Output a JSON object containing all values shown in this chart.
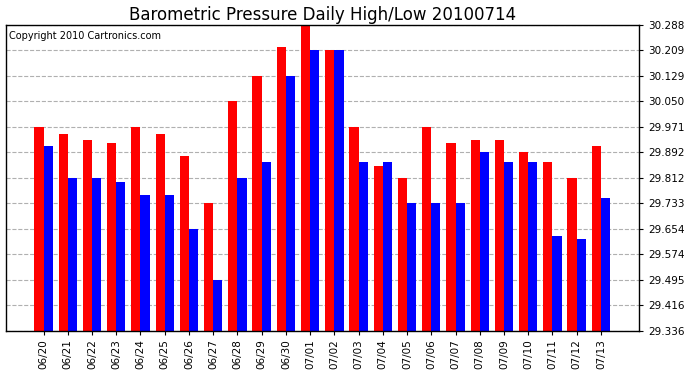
{
  "title": "Barometric Pressure Daily High/Low 20100714",
  "copyright": "Copyright 2010 Cartronics.com",
  "categories": [
    "06/20",
    "06/21",
    "06/22",
    "06/23",
    "06/24",
    "06/25",
    "06/26",
    "06/27",
    "06/28",
    "06/29",
    "06/30",
    "07/01",
    "07/02",
    "07/03",
    "07/04",
    "07/05",
    "07/06",
    "07/07",
    "07/08",
    "07/09",
    "07/10",
    "07/11",
    "07/12",
    "07/13"
  ],
  "high_values": [
    29.971,
    29.95,
    29.93,
    29.92,
    29.971,
    29.95,
    29.88,
    29.733,
    30.05,
    30.129,
    30.22,
    30.288,
    30.209,
    29.971,
    29.85,
    29.812,
    29.971,
    29.92,
    29.93,
    29.93,
    29.892,
    29.86,
    29.812,
    29.912
  ],
  "low_values": [
    29.912,
    29.812,
    29.812,
    29.8,
    29.76,
    29.76,
    29.654,
    29.495,
    29.812,
    29.86,
    30.129,
    30.209,
    30.209,
    29.86,
    29.86,
    29.733,
    29.733,
    29.733,
    29.892,
    29.86,
    29.86,
    29.63,
    29.62,
    29.75
  ],
  "high_color": "#ff0000",
  "low_color": "#0000ff",
  "bg_color": "#ffffff",
  "plot_bg_color": "#ffffff",
  "yticks": [
    29.336,
    29.416,
    29.495,
    29.574,
    29.654,
    29.733,
    29.812,
    29.892,
    29.971,
    30.05,
    30.129,
    30.209,
    30.288
  ],
  "ymin": 29.336,
  "ymax": 30.288,
  "grid_color": "#b0b0b0",
  "title_fontsize": 12,
  "copyright_fontsize": 7,
  "tick_fontsize": 7.5,
  "bar_width": 0.38
}
